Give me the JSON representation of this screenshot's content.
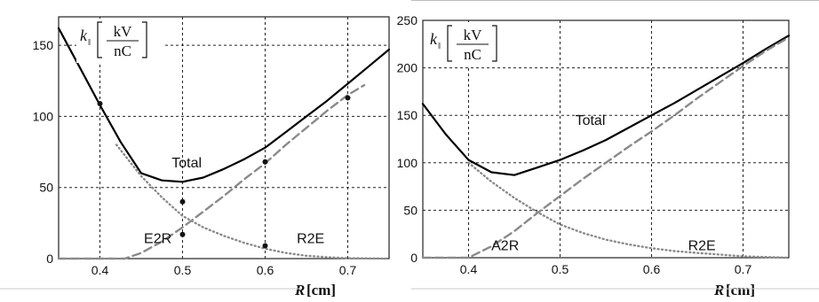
{
  "chart_data": [
    {
      "type": "line",
      "title": "",
      "xlabel": "R",
      "xlabel_unit": "[cm]",
      "ylabel": "k",
      "ylabel_subscript": "‖",
      "ylabel_unit_num": "kV",
      "ylabel_unit_den": "nC",
      "xlim": [
        0.35,
        0.75
      ],
      "ylim": [
        0,
        170
      ],
      "x_ticks": [
        0.4,
        0.5,
        0.6,
        0.7
      ],
      "y_ticks": [
        0,
        50,
        100,
        150
      ],
      "grid": true,
      "series": [
        {
          "name": "Total",
          "style": "solid",
          "color": "#000000",
          "x": [
            0.35,
            0.375,
            0.4,
            0.425,
            0.45,
            0.475,
            0.5,
            0.525,
            0.55,
            0.575,
            0.6,
            0.625,
            0.65,
            0.675,
            0.7,
            0.725,
            0.75
          ],
          "y": [
            162,
            135,
            108,
            82,
            60,
            55,
            54,
            57,
            63,
            70,
            78,
            89,
            100,
            111,
            123,
            135,
            147
          ]
        },
        {
          "name": "E2R",
          "style": "dotted",
          "color": "#8a8a8a",
          "x": [
            0.42,
            0.45,
            0.475,
            0.5,
            0.525,
            0.55,
            0.575,
            0.6,
            0.625,
            0.65,
            0.675,
            0.7,
            0.75
          ],
          "y": [
            80,
            58,
            43,
            30,
            22,
            16,
            11,
            7,
            4,
            2,
            1,
            0.3,
            0
          ]
        },
        {
          "name": "R2E",
          "style": "dashed",
          "color": "#8a8a8a",
          "x": [
            0.35,
            0.43,
            0.45,
            0.475,
            0.5,
            0.525,
            0.55,
            0.575,
            0.6,
            0.625,
            0.65,
            0.675,
            0.7,
            0.72
          ],
          "y": [
            0,
            0,
            4,
            12,
            22,
            33,
            44,
            56,
            67,
            80,
            92,
            104,
            115,
            122
          ]
        }
      ],
      "points": {
        "x": [
          0.4,
          0.5,
          0.5,
          0.6,
          0.6,
          0.7
        ],
        "y": [
          109,
          40,
          17,
          68,
          9,
          113
        ]
      },
      "annotations": [
        {
          "text": "Total",
          "x": 0.505,
          "y": 64
        },
        {
          "text": "E2R",
          "x": 0.47,
          "y": 11
        },
        {
          "text": "R2E",
          "x": 0.655,
          "y": 11
        }
      ]
    },
    {
      "type": "line",
      "title": "",
      "xlabel": "R",
      "xlabel_unit": "[cm]",
      "ylabel": "k",
      "ylabel_subscript": "‖",
      "ylabel_unit_num": "kV",
      "ylabel_unit_den": "nC",
      "xlim": [
        0.35,
        0.75
      ],
      "ylim": [
        0,
        250
      ],
      "x_ticks": [
        0.4,
        0.5,
        0.6,
        0.7
      ],
      "y_ticks": [
        0,
        50,
        100,
        150,
        200,
        250
      ],
      "grid": true,
      "series": [
        {
          "name": "Total",
          "style": "solid",
          "color": "#000000",
          "x": [
            0.35,
            0.375,
            0.4,
            0.425,
            0.45,
            0.475,
            0.5,
            0.525,
            0.55,
            0.575,
            0.6,
            0.625,
            0.65,
            0.675,
            0.7,
            0.725,
            0.75
          ],
          "y": [
            162,
            130,
            103,
            90,
            87,
            95,
            103,
            113,
            124,
            137,
            150,
            163,
            177,
            191,
            205,
            220,
            234
          ]
        },
        {
          "name": "R2E",
          "style": "dotted",
          "color": "#8a8a8a",
          "x": [
            0.4,
            0.425,
            0.45,
            0.475,
            0.5,
            0.525,
            0.55,
            0.575,
            0.6,
            0.625,
            0.65,
            0.7,
            0.75
          ],
          "y": [
            100,
            80,
            63,
            48,
            35,
            26,
            19,
            14,
            10,
            7,
            5,
            1.5,
            0
          ]
        },
        {
          "name": "A2R",
          "style": "dashed",
          "color": "#8a8a8a",
          "x": [
            0.35,
            0.4,
            0.425,
            0.45,
            0.475,
            0.5,
            0.525,
            0.55,
            0.575,
            0.6,
            0.625,
            0.65,
            0.675,
            0.7,
            0.725,
            0.75
          ],
          "y": [
            0,
            0,
            12,
            28,
            47,
            65,
            83,
            100,
            117,
            133,
            150,
            168,
            185,
            202,
            218,
            232
          ]
        }
      ],
      "annotations": [
        {
          "text": "Total",
          "x": 0.533,
          "y": 140
        },
        {
          "text": "A2R",
          "x": 0.44,
          "y": 8
        },
        {
          "text": "R2E",
          "x": 0.655,
          "y": 8
        }
      ]
    }
  ]
}
